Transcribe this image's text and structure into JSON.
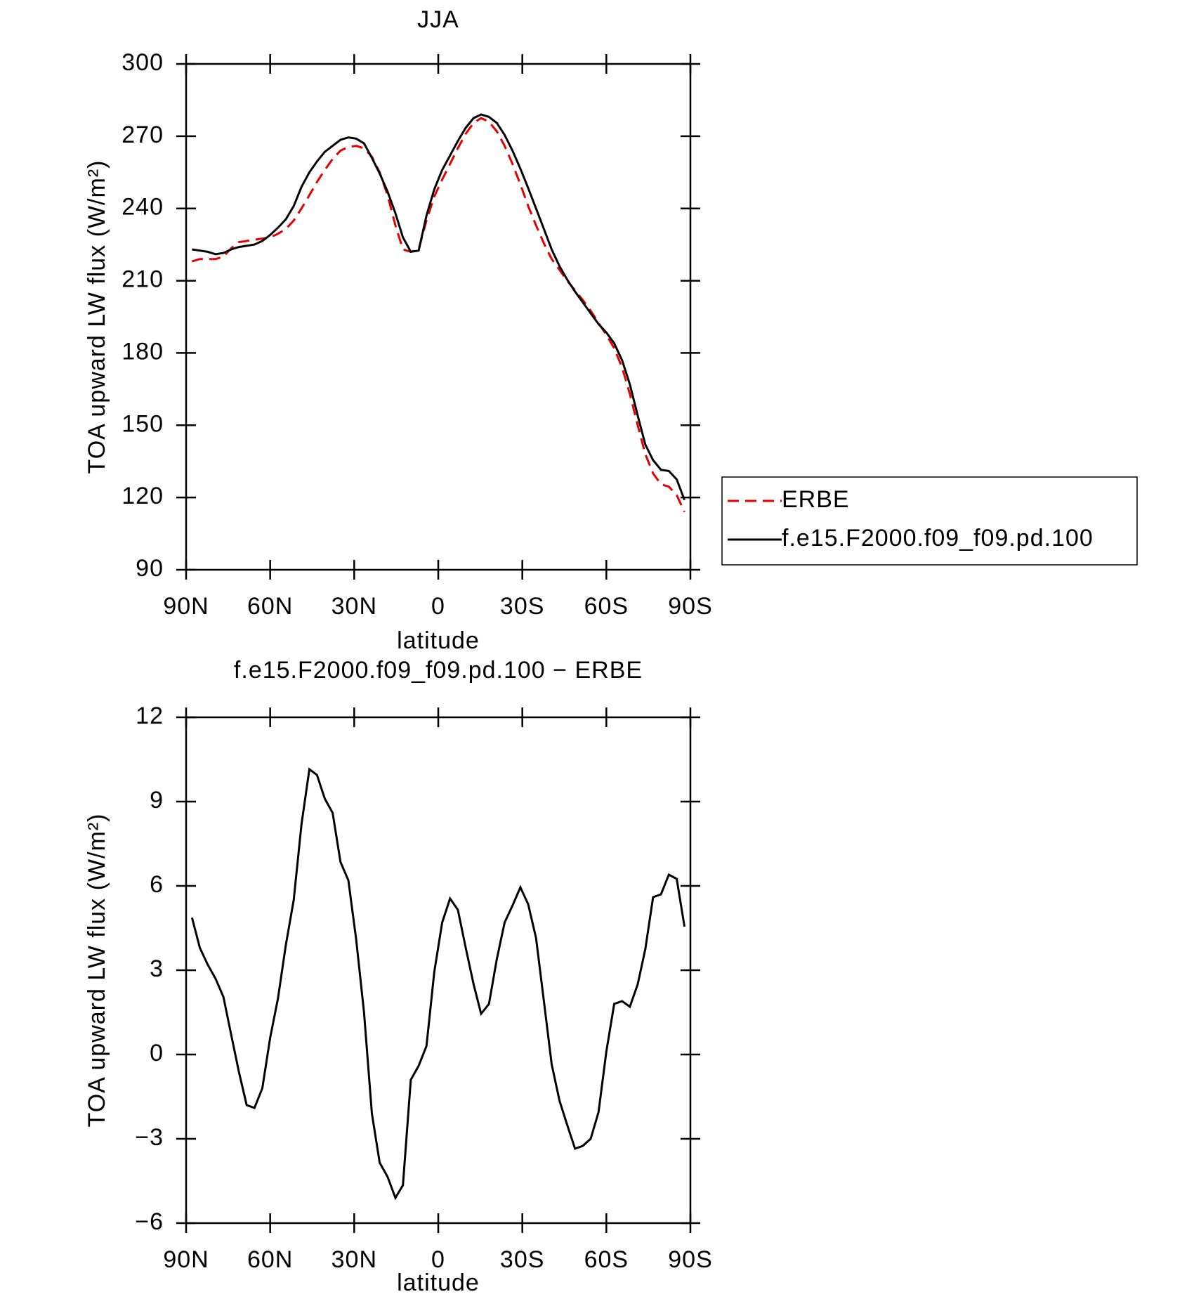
{
  "chart_data": [
    {
      "type": "line",
      "title": "JJA",
      "xlabel": "latitude",
      "ylabel": "TOA upward LW flux (W/m²)",
      "x": [
        87.9,
        85.1,
        82.3,
        79.5,
        76.7,
        73.9,
        71.2,
        68.4,
        65.6,
        62.8,
        60.0,
        57.2,
        54.4,
        51.6,
        48.8,
        46.0,
        43.3,
        40.5,
        37.7,
        34.9,
        32.1,
        29.3,
        26.5,
        23.7,
        20.9,
        18.1,
        15.3,
        12.6,
        9.8,
        7.0,
        4.2,
        1.4,
        -1.4,
        -4.2,
        -7.0,
        -9.8,
        -12.6,
        -15.3,
        -18.1,
        -20.9,
        -23.7,
        -26.5,
        -29.3,
        -32.1,
        -34.9,
        -37.7,
        -40.5,
        -43.3,
        -46.0,
        -48.8,
        -51.6,
        -54.4,
        -57.2,
        -60.0,
        -62.8,
        -65.6,
        -68.4,
        -71.2,
        -73.9,
        -76.7,
        -79.5,
        -82.3,
        -85.1,
        -87.9
      ],
      "series": [
        {
          "name": "ERBE",
          "color": "#e60000",
          "linestyle": "dashed",
          "values": [
            218,
            219,
            219,
            219,
            220,
            223.5,
            226,
            226.5,
            227,
            227.5,
            228,
            229.5,
            231.5,
            235,
            240,
            245.5,
            251,
            256,
            260.5,
            264,
            265.5,
            266,
            265,
            261.5,
            255,
            245.5,
            233,
            223,
            222,
            223,
            235,
            245,
            252,
            258.5,
            265,
            271,
            275.5,
            277.5,
            276,
            272,
            266,
            258.5,
            250,
            241,
            233,
            225.5,
            219,
            214.5,
            210,
            206,
            202,
            197.5,
            192.5,
            187.5,
            182,
            174,
            163,
            150,
            138,
            130,
            125.5,
            124.5,
            121,
            114
          ]
        },
        {
          "name": "f.e15.F2000.f09_f09.pd.100",
          "color": "#000000",
          "linestyle": "solid",
          "values": [
            223,
            222.5,
            222,
            221,
            221.5,
            223,
            224,
            224.5,
            225,
            226.5,
            229,
            232,
            235.5,
            241,
            249,
            255,
            259.5,
            263.5,
            266,
            268.5,
            269.5,
            269,
            267,
            261,
            254.5,
            247,
            238,
            228,
            222,
            222.5,
            237,
            248,
            256,
            262,
            268,
            273.5,
            277.5,
            279,
            278,
            275.5,
            270.5,
            264,
            256.5,
            248.5,
            240,
            231.5,
            223,
            216,
            210.5,
            205.5,
            201,
            196.5,
            192,
            188.5,
            184,
            177,
            167,
            154,
            142,
            135.5,
            131.5,
            131,
            127.5,
            119
          ]
        }
      ],
      "xlim": [
        90,
        -90
      ],
      "xticks": [
        {
          "value": 90,
          "label": "90N"
        },
        {
          "value": 60,
          "label": "60N"
        },
        {
          "value": 30,
          "label": "30N"
        },
        0,
        {
          "value": -30,
          "label": "30S"
        },
        {
          "value": -60,
          "label": "60S"
        },
        {
          "value": -90,
          "label": "90S"
        }
      ],
      "ylim": [
        90,
        300
      ],
      "yticks": [
        90,
        120,
        150,
        180,
        210,
        240,
        270,
        300
      ],
      "legend": "right"
    },
    {
      "type": "line",
      "title": "f.e15.F2000.f09_f09.pd.100 − ERBE",
      "xlabel": "latitude",
      "ylabel": "TOA upward LW flux (W/m²)",
      "x": [
        87.9,
        85.1,
        82.3,
        79.5,
        76.7,
        73.9,
        71.2,
        68.4,
        65.6,
        62.8,
        60.0,
        57.2,
        54.4,
        51.6,
        48.8,
        46.0,
        43.3,
        40.5,
        37.7,
        34.9,
        32.1,
        29.3,
        26.5,
        23.7,
        20.9,
        18.1,
        15.3,
        12.6,
        9.8,
        7.0,
        4.2,
        1.4,
        -1.4,
        -4.2,
        -7.0,
        -9.8,
        -12.6,
        -15.3,
        -18.1,
        -20.9,
        -23.7,
        -26.5,
        -29.3,
        -32.1,
        -34.9,
        -37.7,
        -40.5,
        -43.3,
        -46.0,
        -48.8,
        -51.6,
        -54.4,
        -57.2,
        -60.0,
        -62.8,
        -65.6,
        -68.4,
        -71.2,
        -73.9,
        -76.7,
        -79.5,
        -82.3,
        -85.1,
        -87.9
      ],
      "series": [
        {
          "color": "#000000",
          "linestyle": "solid",
          "values": [
            4.87,
            3.8,
            3.2,
            2.7,
            2.05,
            0.7,
            -0.6,
            -1.8,
            -1.9,
            -1.2,
            0.6,
            2.0,
            3.9,
            5.5,
            8.2,
            10.15,
            9.95,
            9.1,
            8.6,
            6.85,
            6.2,
            4.1,
            1.5,
            -2.1,
            -3.85,
            -4.35,
            -5.1,
            -4.65,
            -0.9,
            -0.4,
            0.3,
            2.95,
            4.7,
            5.55,
            5.15,
            3.8,
            2.5,
            1.45,
            1.8,
            3.4,
            4.7,
            5.3,
            5.95,
            5.35,
            4.15,
            1.9,
            -0.35,
            -1.65,
            -2.5,
            -3.35,
            -3.25,
            -3.0,
            -2.05,
            0.1,
            1.8,
            1.9,
            1.7,
            2.5,
            3.75,
            5.6,
            5.7,
            6.4,
            6.25,
            4.55
          ]
        }
      ],
      "xlim": [
        90,
        -90
      ],
      "xticks": [
        {
          "value": 90,
          "label": "90N"
        },
        {
          "value": 60,
          "label": "60N"
        },
        {
          "value": 30,
          "label": "30N"
        },
        0,
        {
          "value": -30,
          "label": "30S"
        },
        {
          "value": -60,
          "label": "60S"
        },
        {
          "value": -90,
          "label": "90S"
        }
      ],
      "ylim": [
        -6,
        12
      ],
      "yticks": [
        {
          "value": -6,
          "label": "−6"
        },
        {
          "value": -3,
          "label": "−3"
        },
        0,
        3,
        6,
        9,
        12
      ]
    }
  ]
}
